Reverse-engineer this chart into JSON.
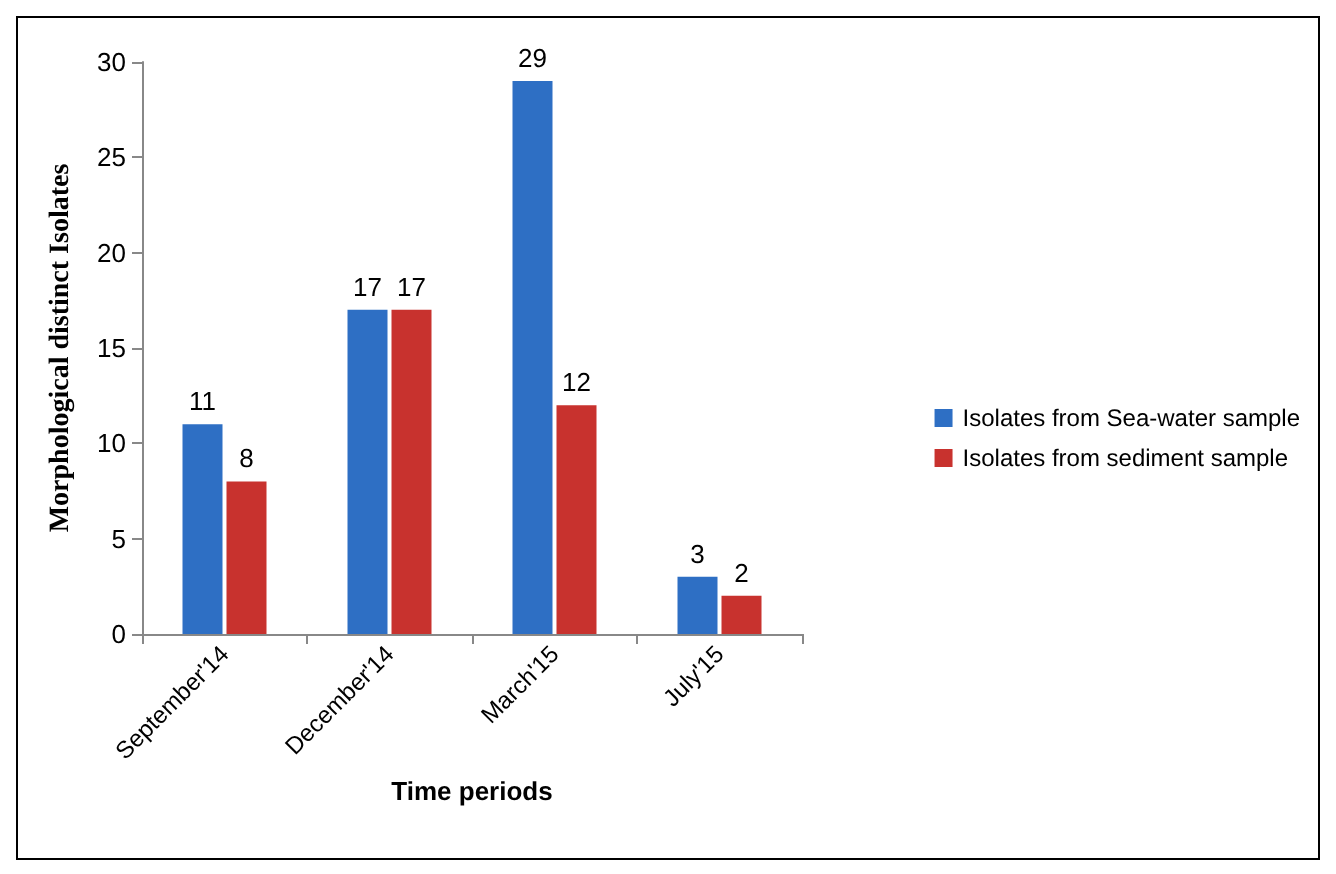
{
  "chart_data": {
    "type": "bar",
    "xlabel": "Time periods",
    "ylabel": "Morphological distinct Isolates",
    "categories": [
      "September'14",
      "December'14",
      "March'15",
      "July'15"
    ],
    "series": [
      {
        "name": "Isolates from Sea-water sample",
        "color": "#2e6fc4",
        "values": [
          11,
          17,
          29,
          3
        ]
      },
      {
        "name": "Isolates from sediment sample",
        "color": "#c8322e",
        "values": [
          8,
          17,
          12,
          2
        ]
      }
    ],
    "ylim": [
      0,
      30
    ],
    "yticks": [
      0,
      5,
      10,
      15,
      20,
      25,
      30
    ],
    "grid": false,
    "legend": "right",
    "data_labels": true
  }
}
